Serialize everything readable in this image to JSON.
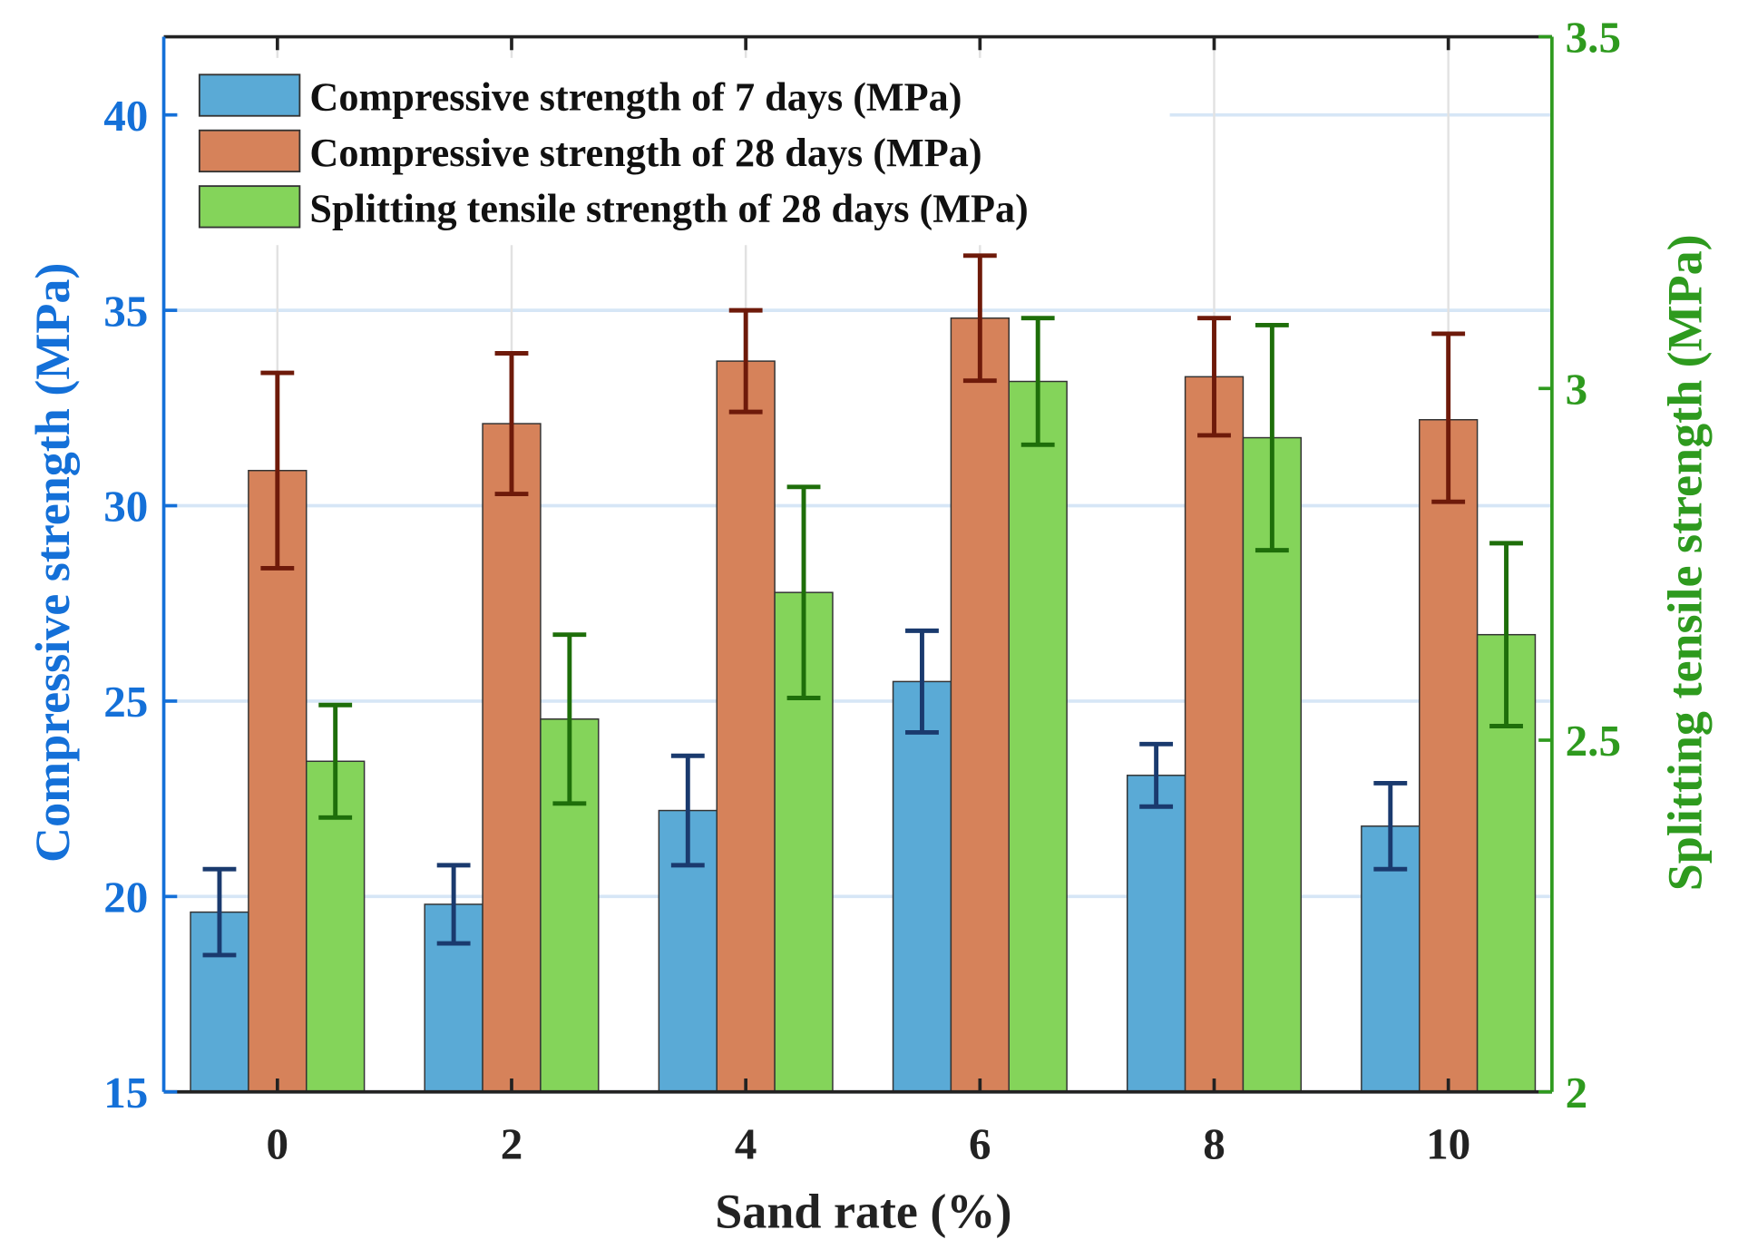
{
  "chart_data": {
    "type": "bar",
    "xlabel": "Sand rate (%)",
    "ylabel": "Compressive strength (MPa)",
    "y2label": "Splitting tensile strength (MPa)",
    "categories": [
      "0",
      "2",
      "4",
      "6",
      "8",
      "10"
    ],
    "ylim": [
      15,
      42
    ],
    "y2lim": [
      2,
      3.5
    ],
    "yticks": [
      "15",
      "20",
      "25",
      "30",
      "35",
      "40"
    ],
    "y2ticks": [
      "2",
      "2.5",
      "3",
      "3.5"
    ],
    "grid": true,
    "legend_position": "top-left",
    "series": [
      {
        "name": "Compressive strength of 7 days (MPa)",
        "axis": "left",
        "color": "#5AAAD6",
        "err_color": "#1A3A6E",
        "values": [
          19.6,
          19.8,
          22.2,
          25.5,
          23.1,
          21.8
        ],
        "err_low": [
          18.5,
          18.8,
          20.8,
          24.2,
          22.3,
          20.7
        ],
        "err_high": [
          20.7,
          20.8,
          23.6,
          26.8,
          23.9,
          22.9
        ]
      },
      {
        "name": "Compressive strength of 28 days (MPa)",
        "axis": "left",
        "color": "#D6825A",
        "err_color": "#6E1A0A",
        "values": [
          30.9,
          32.1,
          33.7,
          34.8,
          33.3,
          32.2
        ],
        "err_low": [
          28.4,
          30.3,
          32.4,
          33.2,
          31.8,
          30.1
        ],
        "err_high": [
          33.4,
          33.9,
          35.0,
          36.4,
          34.8,
          34.4
        ]
      },
      {
        "name": "Splitting tensile strength of 28 days (MPa)",
        "axis": "right",
        "color": "#84D45A",
        "err_color": "#1E6E0A",
        "values": [
          2.47,
          2.53,
          2.71,
          3.01,
          2.93,
          2.65
        ],
        "err_low": [
          2.39,
          2.41,
          2.56,
          2.92,
          2.77,
          2.52
        ],
        "err_high": [
          2.55,
          2.65,
          2.86,
          3.1,
          3.09,
          2.78
        ]
      }
    ],
    "colors": {
      "left_axis": "#1470D8",
      "right_axis": "#2E9A1E"
    }
  }
}
